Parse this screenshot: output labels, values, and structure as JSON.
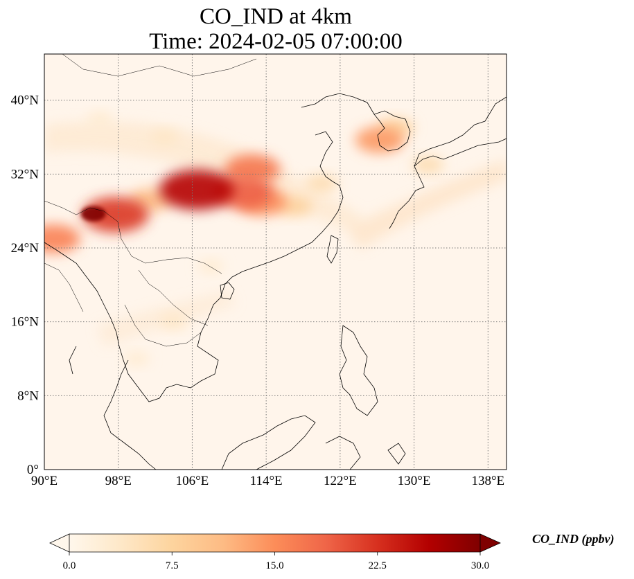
{
  "title": {
    "line1": "CO_IND at 4km",
    "line2": "Time: 2024-02-05 07:00:00"
  },
  "map": {
    "projection": "PlateCarree",
    "lon_range": [
      90,
      140
    ],
    "lat_range": [
      0,
      45
    ],
    "gridlines": "dotted",
    "lon_ticks": [
      {
        "value": 90,
        "label": "90°E"
      },
      {
        "value": 98,
        "label": "98°E"
      },
      {
        "value": 106,
        "label": "106°E"
      },
      {
        "value": 114,
        "label": "114°E"
      },
      {
        "value": 122,
        "label": "122°E"
      },
      {
        "value": 130,
        "label": "130°E"
      },
      {
        "value": 138,
        "label": "138°E"
      }
    ],
    "lat_ticks": [
      {
        "value": 0,
        "label": "0°"
      },
      {
        "value": 8,
        "label": "8°N"
      },
      {
        "value": 16,
        "label": "16°N"
      },
      {
        "value": 24,
        "label": "24°N"
      },
      {
        "value": 32,
        "label": "32°N"
      },
      {
        "value": 40,
        "label": "40°N"
      }
    ],
    "background_color": "#fff5eb",
    "coastline_color": "#000000",
    "plumes": [
      {
        "lon": 106.5,
        "lat": 30.3,
        "value": 26
      },
      {
        "lon": 111.5,
        "lat": 30.0,
        "value": 19
      },
      {
        "lon": 112.5,
        "lat": 32.5,
        "value": 17
      },
      {
        "lon": 113.5,
        "lat": 29.0,
        "value": 15
      },
      {
        "lon": 101.5,
        "lat": 29.2,
        "value": 11
      },
      {
        "lon": 95.3,
        "lat": 27.7,
        "value": 30
      },
      {
        "lon": 97.7,
        "lat": 27.6,
        "value": 22
      },
      {
        "lon": 91.0,
        "lat": 25.0,
        "value": 16
      },
      {
        "lon": 126.3,
        "lat": 35.7,
        "value": 14
      },
      {
        "lon": 128.0,
        "lat": 37.0,
        "value": 8
      },
      {
        "lon": 131.5,
        "lat": 33.0,
        "value": 6
      },
      {
        "lon": 117.0,
        "lat": 28.5,
        "value": 8
      },
      {
        "lon": 120.0,
        "lat": 31.0,
        "value": 6
      },
      {
        "lon": 103.0,
        "lat": 36.0,
        "value": 4
      },
      {
        "lon": 96.0,
        "lat": 38.0,
        "value": 3
      },
      {
        "lon": 108.0,
        "lat": 22.0,
        "value": 3
      },
      {
        "lon": 104.0,
        "lat": 16.0,
        "value": 4
      },
      {
        "lon": 100.0,
        "lat": 12.0,
        "value": 3
      }
    ]
  },
  "colorbar": {
    "label": "CO_IND (ppbv)",
    "colormap": "OrRd",
    "min": 0.0,
    "max": 30.0,
    "extend": "both",
    "ticks": [
      "0.0",
      "7.5",
      "15.0",
      "22.5",
      "30.0"
    ],
    "stops": [
      "#fff7ec",
      "#fee8c8",
      "#fdd49e",
      "#fdbb84",
      "#fc8d59",
      "#ef6548",
      "#d7301f",
      "#b30000",
      "#7f0000"
    ]
  }
}
